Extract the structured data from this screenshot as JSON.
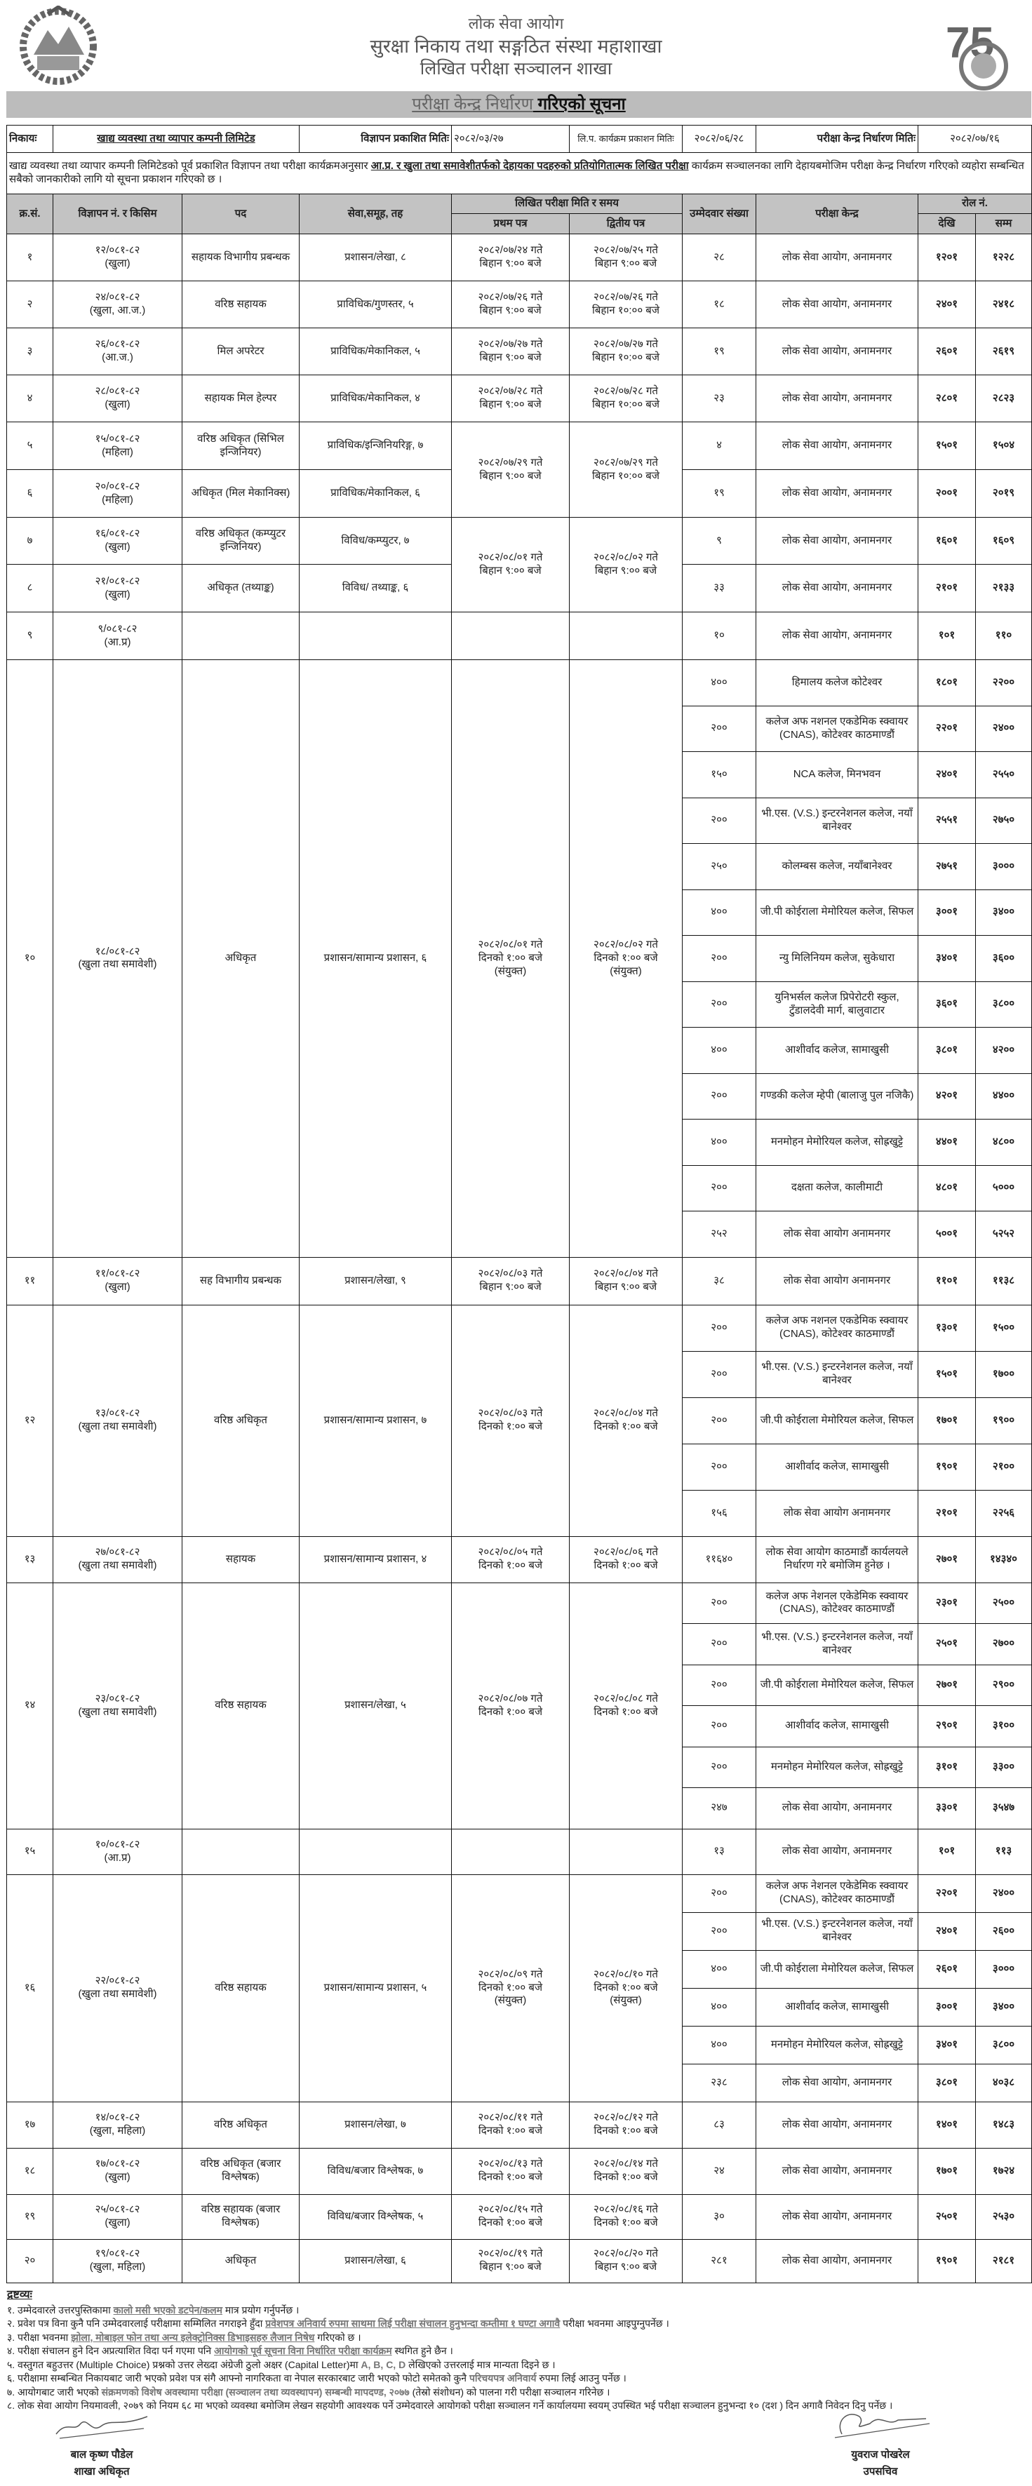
{
  "header": {
    "line1": "लोक सेवा आयोग",
    "line2": "सुरक्षा निकाय तथा सङ्गठित संस्था महाशाखा",
    "line3": "लिखित परीक्षा सञ्चालन शाखा",
    "left_logo": "nepal-emblem",
    "right_logo": "psc-75-years-logo"
  },
  "title": {
    "part1": "परीक्षा केन्द्र निर्धारण",
    "part2": " गरिएको  सूचना"
  },
  "info": {
    "org_label": "निकायः",
    "org_value": "खाद्य व्यवस्था तथा व्यापार कम्पनी लिमिटेड",
    "ad_date_label": "विज्ञापन प्रकाशित मितिः",
    "ad_date": "२०८२/०३/२७",
    "program_date_label": "लि.प. कार्यक्रम प्रकाशन मितिः",
    "program_date": "२०८२/०६/२८",
    "center_date_label": "परीक्षा केन्द्र निर्धारण मितिः",
    "center_date": "२०८२/०७/१६"
  },
  "intro": {
    "pre": "खाद्य व्यवस्था तथा व्यापार कम्पनी लिमिटेडको पूर्व प्रकाशित विज्ञापन तथा परीक्षा कार्यक्रमअनुसार ",
    "bold": "आ.प्र. र खुला तथा समावेशीतर्फको  देहायका पदहरुको प्रतियोगितात्मक लिखित परीक्षा",
    "post": " कार्यक्रम सञ्चालनका लागि देहायबमोजिम परीक्षा केन्द्र निर्धारण गरिएको व्यहोरा सम्बन्धित सबैको जानकारीको लागि यो सूचना प्रकाशन गरिएको छ ।"
  },
  "columns": {
    "sn": "क्र.सं.",
    "adv": "विज्ञापन नं. र किसिम",
    "post": "पद",
    "service": "सेवा,समूह, तह",
    "exam": "लिखित परीक्षा मिति र समय",
    "paper1": "प्रथम पत्र",
    "paper2": "द्वितीय पत्र",
    "count": "उम्मेदवार संख्या",
    "center": "परीक्षा केन्द्र",
    "roll": "रोल नं.",
    "from": "देखि",
    "to": "सम्म"
  },
  "rows": [
    {
      "sn": "१",
      "adv_no": "१२/०८१-८२",
      "adv_type": "(खुला)",
      "post": "सहायक विभागीय प्रबन्धक",
      "service": "प्रशासन/लेखा, ८",
      "paper1": {
        "date": "२०८२/०७/२४ गते",
        "time": "बिहान ९:०० बजे"
      },
      "paper2": {
        "date": "२०८२/०७/२५ गते",
        "time": "बिहान ९:०० बजे"
      },
      "centers": [
        {
          "count": "२८",
          "center": "लोक सेवा आयोग, अनामनगर",
          "from": "१२०१",
          "to": "१२२८"
        }
      ]
    },
    {
      "sn": "२",
      "adv_no": "२४/०८१-८२",
      "adv_type": "(खुला, आ.ज.)",
      "post": "वरिष्ठ सहायक",
      "service": "प्राविधिक/गुणस्तर, ५",
      "paper1": {
        "date": "२०८२/०७/२६ गते",
        "time": "बिहान ९:०० बजे"
      },
      "paper2": {
        "date": "२०८२/०७/२६ गते",
        "time": "बिहान १०:०० बजे"
      },
      "centers": [
        {
          "count": "१८",
          "center": "लोक सेवा आयोग, अनामनगर",
          "from": "२४०१",
          "to": "२४१८"
        }
      ]
    },
    {
      "sn": "३",
      "adv_no": "२६/०८१-८२",
      "adv_type": "(आ.ज.)",
      "post": "मिल अपरेटर",
      "service": "प्राविधिक/मेकानिकल, ५",
      "paper1": {
        "date": "२०८२/०७/२७ गते",
        "time": "बिहान ९:०० बजे"
      },
      "paper2": {
        "date": "२०८२/०७/२७ गते",
        "time": "बिहान १०:०० बजे"
      },
      "centers": [
        {
          "count": "१९",
          "center": "लोक सेवा आयोग, अनामनगर",
          "from": "२६०१",
          "to": "२६१९"
        }
      ]
    },
    {
      "sn": "४",
      "adv_no": "२८/०८१-८२",
      "adv_type": "(खुला)",
      "post": "सहायक मिल हेल्पर",
      "service": "प्राविधिक/मेकानिकल, ४",
      "paper1": {
        "date": "२०८२/०७/२८ गते",
        "time": "बिहान ९:०० बजे"
      },
      "paper2": {
        "date": "२०८२/०७/२८ गते",
        "time": "बिहान १०:०० बजे"
      },
      "centers": [
        {
          "count": "२३",
          "center": "लोक सेवा आयोग, अनामनगर",
          "from": "२८०१",
          "to": "२८२३"
        }
      ]
    },
    {
      "sn": "५",
      "adv_no": "१५/०८१-८२",
      "adv_type": "(महिला)",
      "post": "वरिष्ठ अधिकृत (सिभिल इन्जिनियर)",
      "service": "प्राविधिक/इन्जिनियरिङ्ग, ७",
      "paper1": {
        "date": "२०८२/०७/२९ गते",
        "time": "बिहान ९:०० बजे"
      },
      "paper2": {
        "date": "२०८२/०७/२९ गते",
        "time": "बिहान १०:०० बजे"
      },
      "centers": [
        {
          "count": "४",
          "center": "लोक सेवा आयोग, अनामनगर",
          "from": "१५०१",
          "to": "१५०४"
        }
      ]
    },
    {
      "sn": "६",
      "adv_no": "२०/०८१-८२",
      "adv_type": "(महिला)",
      "post": "अधिकृत (मिल मेकानिक्स)",
      "service": "प्राविधिक/मेकानिकल, ६",
      "shares_exam_dates_with_previous": true,
      "centers": [
        {
          "count": "१९",
          "center": "लोक सेवा आयोग, अनामनगर",
          "from": "२००१",
          "to": "२०१९"
        }
      ]
    },
    {
      "sn": "७",
      "adv_no": "१६/०८१-८२",
      "adv_type": "(खुला)",
      "post": "वरिष्ठ अधिकृत (कम्प्युटर इन्जिनियर)",
      "service": "विविध/कम्प्युटर, ७",
      "paper1": {
        "date": "२०८२/०८/०१ गते",
        "time": "बिहान ९:०० बजे"
      },
      "paper2": {
        "date": "२०८२/०८/०२ गते",
        "time": "बिहान ९:०० बजे"
      },
      "centers": [
        {
          "count": "९",
          "center": "लोक सेवा आयोग, अनामनगर",
          "from": "१६०१",
          "to": "१६०९"
        }
      ]
    },
    {
      "sn": "८",
      "adv_no": "२१/०८१-८२",
      "adv_type": "(खुला)",
      "post": "अधिकृत (तथ्याङ्क)",
      "service": "विविध/ तथ्याङ्क, ६",
      "shares_exam_dates_with_previous": true,
      "centers": [
        {
          "count": "३३",
          "center": "लोक सेवा आयोग, अनामनगर",
          "from": "२१०१",
          "to": "२१३३"
        }
      ]
    },
    {
      "sn": "९",
      "adv_no": "९/०८१-८२",
      "adv_type": "(आ.प्र)",
      "post": "",
      "service": "",
      "paper1": {
        "date": "",
        "time": ""
      },
      "paper2": {
        "date": "",
        "time": ""
      },
      "centers": [
        {
          "count": "१०",
          "center": "लोक सेवा आयोग, अनामनगर",
          "from": "१०१",
          "to": "११०"
        }
      ]
    },
    {
      "sn": "१०",
      "adv_no": "१८/०८१-८२",
      "adv_type": "(खुला तथा समावेशी)",
      "post": "अधिकृत",
      "service": "प्रशासन/सामान्य प्रशासन, ६",
      "paper1": {
        "date": "२०८२/०८/०१ गते",
        "time": "दिनको १:०० बजे",
        "note": "(संयुक्त)"
      },
      "paper2": {
        "date": "२०८२/०८/०२ गते",
        "time": "दिनको १:०० बजे",
        "note": "(संयुक्त)"
      },
      "centers": [
        {
          "count": "४००",
          "center": "हिमालय कलेज कोटेश्वर",
          "from": "१८०१",
          "to": "२२००"
        },
        {
          "count": "२००",
          "center": "कलेज अफ नशनल एकडेमिक स्क्वायर (CNAS), कोटेश्वर काठमाण्डौं",
          "from": "२२०१",
          "to": "२४००"
        },
        {
          "count": "१५०",
          "center": "NCA कलेज, मिनभवन",
          "from": "२४०१",
          "to": "२५५०"
        },
        {
          "count": "२००",
          "center": "भी.एस. (V.S.) इन्टरनेशनल कलेज, नयाँ बानेश्वर",
          "from": "२५५१",
          "to": "२७५०"
        },
        {
          "count": "२५०",
          "center": "कोलम्बस कलेज, नयाँबानेश्वर",
          "from": "२७५१",
          "to": "३०००"
        },
        {
          "count": "४००",
          "center": "जी.पी कोईराला मेमोरियल कलेज, सिफल",
          "from": "३००१",
          "to": "३४००"
        },
        {
          "count": "२००",
          "center": "न्यु मिलिनियम कलेज, सुकेधारा",
          "from": "३४०१",
          "to": "३६००"
        },
        {
          "count": "२००",
          "center": "युनिभर्सल कलेज प्रिपेरोटरी स्कुल, टुँडालदेवी मार्ग, बालुवाटार",
          "from": "३६०१",
          "to": "३८००"
        },
        {
          "count": "४००",
          "center": "आशीर्वाद कलेज, सामाखुसी",
          "from": "३८०१",
          "to": "४२००"
        },
        {
          "count": "२००",
          "center": "गण्डकी कलेज म्हेपी (बालाजु पुल नजिकै)",
          "from": "४२०१",
          "to": "४४००"
        },
        {
          "count": "४००",
          "center": "मनमोहन मेमोरियल कलेज, सोह्रखुट्टे",
          "from": "४४०१",
          "to": "४८००"
        },
        {
          "count": "२००",
          "center": "दक्षता कलेज, कालीमाटी",
          "from": "४८०१",
          "to": "५०००"
        },
        {
          "count": "२५२",
          "center": "लोक सेवा आयोग अनामनगर",
          "from": "५००१",
          "to": "५२५२"
        }
      ]
    },
    {
      "sn": "११",
      "adv_no": "११/०८१-८२",
      "adv_type": "(खुला)",
      "post": "सह विभागीय प्रबन्धक",
      "service": "प्रशासन/लेखा, ९",
      "paper1": {
        "date": "२०८२/०८/०३ गते",
        "time": "बिहान ९:०० बजे"
      },
      "paper2": {
        "date": "२०८२/०८/०४ गते",
        "time": "बिहान ९:०० बजे"
      },
      "centers": [
        {
          "count": "३८",
          "center": "लोक सेवा आयोग अनामनगर",
          "from": "११०१",
          "to": "११३८"
        }
      ]
    },
    {
      "sn": "१२",
      "adv_no": "१३/०८१-८२",
      "adv_type": "(खुला तथा समावेशी)",
      "post": "वरिष्ठ अधिकृत",
      "service": "प्रशासन/सामान्य प्रशासन, ७",
      "paper1": {
        "date": "२०८२/०८/०३ गते",
        "time": "दिनको १:०० बजे"
      },
      "paper2": {
        "date": "२०८२/०८/०४ गते",
        "time": "दिनको १:०० बजे"
      },
      "centers": [
        {
          "count": "२००",
          "center": "कलेज अफ नशनल एकडेमिक स्क्वायर (CNAS), कोटेश्वर काठमाण्डौं",
          "from": "१३०१",
          "to": "१५००"
        },
        {
          "count": "२००",
          "center": "भी.एस. (V.S.) इन्टरनेशनल कलेज, नयाँ बानेश्वर",
          "from": "१५०१",
          "to": "१७००"
        },
        {
          "count": "२००",
          "center": "जी.पी कोईराला मेमोरियल कलेज, सिफल",
          "from": "१७०१",
          "to": "१९००"
        },
        {
          "count": "२००",
          "center": "आशीर्वाद कलेज, सामाखुसी",
          "from": "१९०१",
          "to": "२१००"
        },
        {
          "count": "१५६",
          "center": "लोक सेवा आयोग अनामनगर",
          "from": "२१०१",
          "to": "२२५६"
        }
      ]
    },
    {
      "sn": "१३",
      "adv_no": "२७/०८१-८२",
      "adv_type": "(खुला तथा समावेशी)",
      "post": "सहायक",
      "service": "प्रशासन/सामान्य प्रशासन, ४",
      "paper1": {
        "date": "२०८२/०८/०५ गते",
        "time": "दिनको १:०० बजे"
      },
      "paper2": {
        "date": "२०८२/०८/०६ गते",
        "time": "दिनको १:०० बजे"
      },
      "centers": [
        {
          "count": "११६४०",
          "center": "लोक सेवा आयोग काठमाडौं कार्यलयले निर्धारण गरे बमोजिम हुनेछ ।",
          "from": "२७०१",
          "to": "१४३४०"
        }
      ]
    },
    {
      "sn": "१४",
      "adv_no": "२३/०८१-८२",
      "adv_type": "(खुला तथा समावेशी)",
      "post": "वरिष्ठ सहायक",
      "service": "प्रशासन/लेखा, ५",
      "paper1": {
        "date": "२०८२/०८/०७ गते",
        "time": "दिनको १:०० बजे"
      },
      "paper2": {
        "date": "२०८२/०८/०८ गते",
        "time": "दिनको १:०० बजे"
      },
      "centers": [
        {
          "count": "२००",
          "center": "कलेज अफ नेशनल एकेडेमिक स्क्वायर (CNAS), कोटेश्वर काठमाण्डौं",
          "from": "२३०१",
          "to": "२५००"
        },
        {
          "count": "२००",
          "center": "भी.एस. (V.S.) इन्टरनेशनल कलेज, नयाँ बानेश्वर",
          "from": "२५०१",
          "to": "२७००"
        },
        {
          "count": "२००",
          "center": "जी.पी कोईराला मेमोरियल कलेज, सिफल",
          "from": "२७०१",
          "to": "२९००"
        },
        {
          "count": "२००",
          "center": "आशीर्वाद कलेज, सामाखुसी",
          "from": "२९०१",
          "to": "३१००"
        },
        {
          "count": "२००",
          "center": "मनमोहन मेमोरियल कलेज, सोह्रखुट्टे",
          "from": "३१०१",
          "to": "३३००"
        },
        {
          "count": "२४७",
          "center": "लोक सेवा आयोग, अनामनगर",
          "from": "३३०१",
          "to": "३५४७"
        }
      ]
    },
    {
      "sn": "१५",
      "adv_no": "१०/०८१-८२",
      "adv_type": "(आ.प्र)",
      "post": "",
      "service": "",
      "paper1": {
        "date": "",
        "time": ""
      },
      "paper2": {
        "date": "",
        "time": ""
      },
      "centers": [
        {
          "count": "१३",
          "center": "लोक सेवा आयोग, अनामनगर",
          "from": "१०१",
          "to": "११३"
        }
      ]
    },
    {
      "sn": "१६",
      "adv_no": "२२/०८१-८२",
      "adv_type": "(खुला तथा समावेशी)",
      "post": "वरिष्ठ सहायक",
      "service": "प्रशासन/सामान्य प्रशासन, ५",
      "paper1": {
        "date": "२०८२/०८/०९ गते",
        "time": "दिनको १:०० बजे",
        "note": "(संयुक्त)"
      },
      "paper2": {
        "date": "२०८२/०८/१० गते",
        "time": "दिनको १:०० बजे",
        "note": "(संयुक्त)"
      },
      "centers": [
        {
          "count": "२००",
          "center": "कलेज अफ नेशनल एकेडेमिक स्क्वायर (CNAS), कोटेश्वर काठमाण्डौं",
          "from": "२२०१",
          "to": "२४००"
        },
        {
          "count": "२००",
          "center": "भी.एस. (V.S.) इन्टरनेशनल कलेज, नयाँ बानेश्वर",
          "from": "२४०१",
          "to": "२६००"
        },
        {
          "count": "४००",
          "center": "जी.पी कोईराला मेमोरियल कलेज, सिफल",
          "from": "२६०१",
          "to": "३०००"
        },
        {
          "count": "४००",
          "center": "आशीर्वाद कलेज, सामाखुसी",
          "from": "३००१",
          "to": "३४००"
        },
        {
          "count": "४००",
          "center": "मनमोहन मेमोरियल कलेज, सोह्रखुट्टे",
          "from": "३४०१",
          "to": "३८००"
        },
        {
          "count": "२३८",
          "center": "लोक सेवा आयोग, अनामनगर",
          "from": "३८०१",
          "to": "४०३८"
        }
      ]
    },
    {
      "sn": "१७",
      "adv_no": "१४/०८१-८२",
      "adv_type": "(खुला, महिला)",
      "post": "वरिष्ठ अधिकृत",
      "service": "प्रशासन/लेखा, ७",
      "paper1": {
        "date": "२०८२/०८/११ गते",
        "time": "दिनको १:०० बजे"
      },
      "paper2": {
        "date": "२०८२/०८/१२ गते",
        "time": "दिनको १:०० बजे"
      },
      "centers": [
        {
          "count": "८३",
          "center": "लोक सेवा आयोग, अनामनगर",
          "from": "१४०१",
          "to": "१४८३"
        }
      ]
    },
    {
      "sn": "१८",
      "adv_no": "१७/०८१-८२",
      "adv_type": "(खुला)",
      "post": "वरिष्ठ अधिकृत (बजार विश्लेषक)",
      "service": "विविध/बजार विश्लेषक, ७",
      "paper1": {
        "date": "२०८२/०८/१३ गते",
        "time": "दिनको १:०० बजे"
      },
      "paper2": {
        "date": "२०८२/०८/१४ गते",
        "time": "दिनको १:०० बजे"
      },
      "centers": [
        {
          "count": "२४",
          "center": "लोक सेवा आयोग, अनामनगर",
          "from": "१७०१",
          "to": "१७२४"
        }
      ]
    },
    {
      "sn": "१९",
      "adv_no": "२५/०८१-८२",
      "adv_type": "(खुला)",
      "post": "वरिष्ठ सहायक (बजार विश्लेषक)",
      "service": "विविध/बजार विश्लेषक, ५",
      "paper1": {
        "date": "२०८२/०८/१५ गते",
        "time": "दिनको १:०० बजे"
      },
      "paper2": {
        "date": "२०८२/०८/१६ गते",
        "time": "दिनको १:०० बजे"
      },
      "centers": [
        {
          "count": "३०",
          "center": "लोक सेवा आयोग, अनामनगर",
          "from": "२५०१",
          "to": "२५३०"
        }
      ]
    },
    {
      "sn": "२०",
      "adv_no": "१९/०८१-८२",
      "adv_type": "(खुला, महिला)",
      "post": "अधिकृत",
      "service": "प्रशासन/लेखा, ६",
      "paper1": {
        "date": "२०८२/०८/१९ गते",
        "time": "बिहान ९:०० बजे"
      },
      "paper2": {
        "date": "२०८२/०८/२० गते",
        "time": "बिहान ९:०० बजे"
      },
      "centers": [
        {
          "count": "२८१",
          "center": "लोक सेवा आयोग, अनामनगर",
          "from": "१९०१",
          "to": "२१८१"
        }
      ]
    }
  ],
  "notes": {
    "heading": "द्रष्टव्यः",
    "items": [
      [
        {
          "t": "१. उम्मेदवारले उत्तरपुस्तिकामा ",
          "s": ""
        },
        {
          "t": "कालो मसी भएको डटपेन/कलम",
          "s": "u"
        },
        {
          "t": " मात्र प्रयोग गर्नुपर्नेछ ।",
          "s": ""
        }
      ],
      [
        {
          "t": "२. प्रवेश पत्र विना कुनै पनि उम्मेदवारलाई परीक्षामा सम्मिलित नगराइने हुँदा ",
          "s": ""
        },
        {
          "t": "प्रवेशपत्र अनिवार्य रुपमा साथमा लिई परीक्षा संचालन हुनुभन्दा कम्तीमा १ घण्टा अगावै",
          "s": "u"
        },
        {
          "t": " परीक्षा भवनमा आइपुग्नुपर्नेछ ।",
          "s": ""
        }
      ],
      [
        {
          "t": "३. परीक्षा भवनमा ",
          "s": ""
        },
        {
          "t": "झोला, मोबाइल फोन तथा अन्य इलेक्ट्रोनिक्स डिभाइसहरु लैजान निषेध",
          "s": "u"
        },
        {
          "t": " गरिएको छ ।",
          "s": ""
        }
      ],
      [
        {
          "t": "४. परीक्षा संचालन हुने दिन अप्रत्याशित विदा पर्न गएमा पनि ",
          "s": ""
        },
        {
          "t": "आयोगको पूर्व सूचना विना निर्धारित परीक्षा कार्यक्रम",
          "s": "u"
        },
        {
          "t": " स्थगित हुने छैन ।",
          "s": ""
        }
      ],
      [
        {
          "t": "५. वस्तुगत बहुउत्तर (Multiple Choice) प्रश्नको उत्तर लेख्दा अंग्रेजी ठुलो अक्षर (Capital Letter)मा ",
          "s": ""
        },
        {
          "t": "A, B, C, D",
          "s": "b"
        },
        {
          "t": " लेखिएको उत्तरलाई मात्र मान्यता दिइने छ ।",
          "s": ""
        }
      ],
      [
        {
          "t": "६. परीक्षामा सम्बन्धित निकायबाट जारी भएको प्रवेश पत्र संगै आफ्नो नागरिकता वा नेपाल सरकारबाट जारी भएको फोटो समेतको कुनै ",
          "s": ""
        },
        {
          "t": "परिचयपत्र अनिवार्य",
          "s": "b"
        },
        {
          "t": " रुपमा लिई आउनु पर्नेछ ।",
          "s": ""
        }
      ],
      [
        {
          "t": "७. आयोगबाट जारी भएको ",
          "s": ""
        },
        {
          "t": "संक्रमणको विशेष अवस्थामा परीक्षा (सञ्चालन तथा व्यवस्थापन)  सम्बन्धी मापदण्ड, २०७७",
          "s": "b"
        },
        {
          "t": " (तेस्रो संशोधन) को पालना गरी परीक्षा सञ्चालन गरिनेछ ।",
          "s": ""
        }
      ],
      [
        {
          "t": "८. लोक सेवा आयोग नियमावली, २०७९ को नियम ६८ मा भएको व्यवस्था बमोजिम लेखन सहयोगी आवश्यक पर्ने उम्मेदवारले आयोगको परीक्षा सञ्चालन गर्ने कार्यालयमा स्वयम् उपस्थित भई परीक्षा सञ्चालन हुनुभन्दा १० (दश ) दिन अगावै निवेदन दिनु पर्नेछ ।",
          "s": ""
        }
      ]
    ]
  },
  "signatories": [
    {
      "name": "बाल कृष्ण पौडेल",
      "designation": "शाखा अधिकृत"
    },
    {
      "name": "युवराज पोखरेल",
      "designation": "उपसचिव"
    }
  ]
}
